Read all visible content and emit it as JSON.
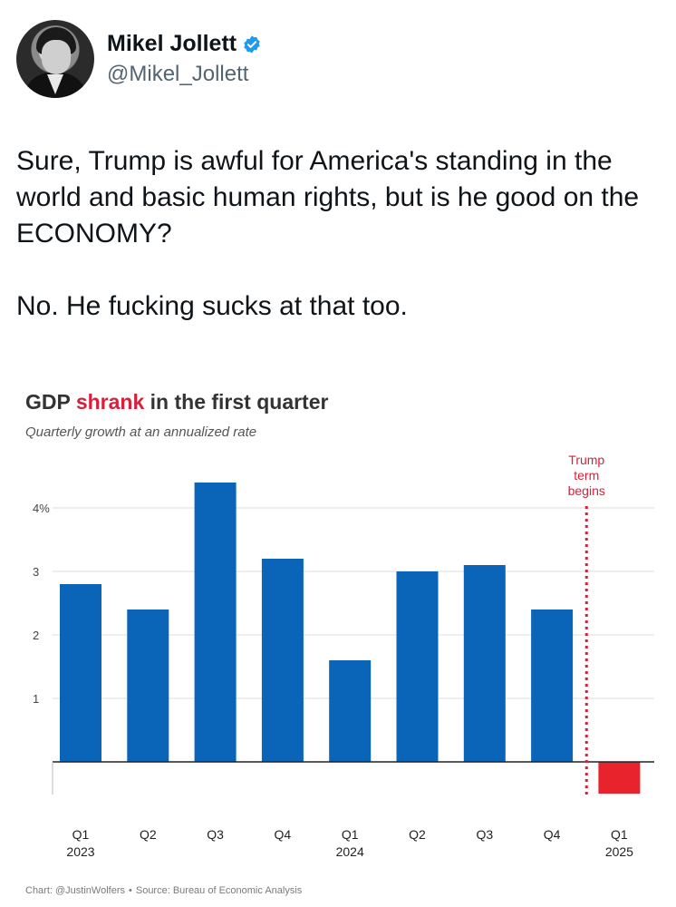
{
  "author": {
    "name": "Mikel Jollett",
    "handle": "@Mikel_Jollett",
    "verified_color": "#1d9bf0"
  },
  "tweet": {
    "paragraphs": [
      "Sure, Trump is awful for America's standing in the world and basic human rights, but is he good on the ECONOMY?",
      "No. He fucking sucks at that too."
    ]
  },
  "chart": {
    "title_prefix": "GDP ",
    "title_accent": "shrank",
    "title_suffix": " in the first quarter",
    "subtitle": "Quarterly growth at an annualized rate",
    "credit_chart": "Chart: @JustinWolfers",
    "credit_source": "Source: Bureau of Economic Analysis",
    "annotation": [
      "Trump",
      "term",
      "begins"
    ]
  },
  "chart_data": {
    "type": "bar",
    "categories": [
      "Q1",
      "Q2",
      "Q3",
      "Q4",
      "Q1",
      "Q2",
      "Q3",
      "Q4",
      "Q1"
    ],
    "year_labels": [
      "2023",
      "",
      "",
      "",
      "2024",
      "",
      "",
      "",
      "2025"
    ],
    "values": [
      2.8,
      2.4,
      4.4,
      3.2,
      1.6,
      3.0,
      3.1,
      2.4,
      -0.5
    ],
    "colors": {
      "positive": "#0a64b8",
      "negative": "#e8232c",
      "annotation": "#d8203b"
    },
    "yticks": [
      "1",
      "2",
      "3",
      "4%"
    ],
    "ylim": [
      -0.5,
      4.6
    ],
    "grid": true
  }
}
